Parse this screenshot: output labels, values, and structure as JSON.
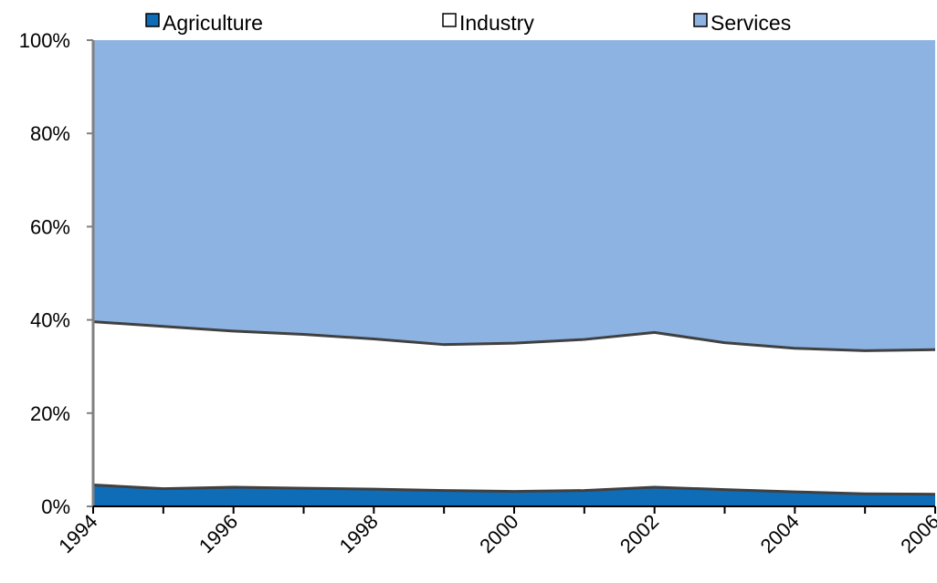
{
  "chart_data": {
    "type": "area",
    "stacked": true,
    "title": "",
    "xlabel": "",
    "ylabel": "",
    "x": [
      1994,
      1995,
      1996,
      1997,
      1998,
      1999,
      2000,
      2001,
      2002,
      2003,
      2004,
      2005,
      2006
    ],
    "x_tick_labels": [
      "1994",
      "1996",
      "1998",
      "2000",
      "2002",
      "2004",
      "2006"
    ],
    "y_tick_labels": [
      "0%",
      "20%",
      "40%",
      "60%",
      "80%",
      "100%"
    ],
    "ylim": [
      0,
      100
    ],
    "series": [
      {
        "name": "Agriculture",
        "color": "#0F6CB6",
        "values": [
          4.6,
          3.8,
          4.1,
          3.9,
          3.7,
          3.4,
          3.2,
          3.4,
          4.1,
          3.6,
          3.1,
          2.7,
          2.6
        ]
      },
      {
        "name": "Industry",
        "color": "#FFFFFF",
        "values": [
          35.0,
          34.8,
          33.5,
          33.0,
          32.2,
          31.3,
          31.8,
          32.4,
          33.2,
          31.5,
          30.8,
          30.7,
          31.0
        ]
      },
      {
        "name": "Services",
        "color": "#8DB3E2",
        "values": [
          60.4,
          61.4,
          62.4,
          63.1,
          64.1,
          65.3,
          65.0,
          64.2,
          62.7,
          64.9,
          66.1,
          66.6,
          66.4
        ]
      }
    ],
    "legend_position": "top",
    "grid": false,
    "outline_color": "#404040"
  }
}
